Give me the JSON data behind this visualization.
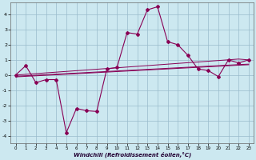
{
  "x": [
    0,
    1,
    2,
    3,
    4,
    5,
    6,
    7,
    8,
    9,
    10,
    11,
    12,
    13,
    14,
    15,
    16,
    17,
    18,
    19,
    20,
    21,
    22,
    23
  ],
  "y_main": [
    0.0,
    0.62,
    -0.5,
    -0.3,
    -0.3,
    -3.8,
    -2.2,
    -2.35,
    -2.4,
    0.4,
    0.5,
    2.8,
    2.7,
    4.3,
    4.5,
    2.2,
    2.0,
    1.3,
    0.4,
    0.3,
    -0.1,
    1.0,
    0.8,
    1.0
  ],
  "y_reg1": [
    0.0,
    0.048,
    0.096,
    0.144,
    0.192,
    0.24,
    0.288,
    0.335,
    0.383,
    0.431,
    0.479,
    0.527,
    0.575,
    0.623,
    0.671,
    0.719,
    0.767,
    0.815,
    0.862,
    0.91,
    0.958,
    1.006,
    1.054,
    1.0
  ],
  "y_reg2": [
    -0.08,
    -0.045,
    -0.01,
    0.025,
    0.06,
    0.095,
    0.13,
    0.165,
    0.2,
    0.235,
    0.27,
    0.305,
    0.34,
    0.375,
    0.41,
    0.445,
    0.48,
    0.515,
    0.55,
    0.585,
    0.62,
    0.655,
    0.69,
    0.72
  ],
  "y_reg3": [
    -0.12,
    -0.085,
    -0.05,
    -0.015,
    0.02,
    0.055,
    0.09,
    0.125,
    0.16,
    0.195,
    0.23,
    0.265,
    0.3,
    0.335,
    0.37,
    0.405,
    0.44,
    0.475,
    0.51,
    0.545,
    0.58,
    0.615,
    0.65,
    0.68
  ],
  "line_color": "#880055",
  "bg_color": "#cce8f0",
  "grid_color": "#99bbcc",
  "xlim": [
    -0.5,
    23.5
  ],
  "ylim": [
    -4.5,
    4.8
  ],
  "yticks": [
    -4,
    -3,
    -2,
    -1,
    0,
    1,
    2,
    3,
    4
  ],
  "xticks": [
    0,
    1,
    2,
    3,
    4,
    5,
    6,
    7,
    8,
    9,
    10,
    11,
    12,
    13,
    14,
    15,
    16,
    17,
    18,
    19,
    20,
    21,
    22,
    23
  ],
  "xlabel": "Windchill (Refroidissement éolien,°C)"
}
